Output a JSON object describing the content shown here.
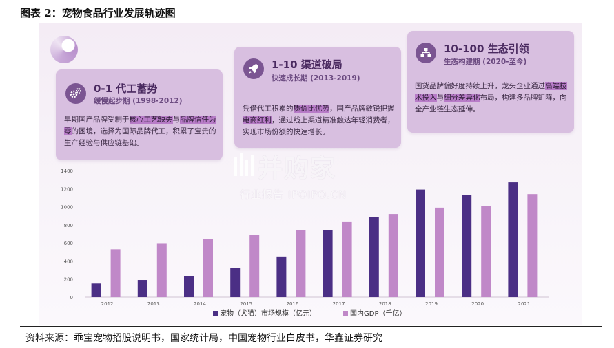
{
  "figure": {
    "title": "图表 2：宠物食品行业发展轨迹图",
    "source": "资料来源：乖宝宠物招股说明书，国家统计局，中国宠物行业白皮书，华鑫证券研究"
  },
  "cards": [
    {
      "heading": "0-1 代工蓄势",
      "sub": "缓慢起步期 (1998-2012)",
      "icon": "gears-icon",
      "body_parts": [
        "早期国产品牌受制于",
        "核心工艺缺失",
        "与",
        "品牌信任为零",
        "的困境，选择为国际品牌代工，积累了宝贵的生产经验与供应链基础。"
      ]
    },
    {
      "heading": "1-10 渠道破局",
      "sub": "快速成长期 (2013-2019)",
      "icon": "rocket-icon",
      "body_parts": [
        "凭借代工积累的",
        "质价比优势",
        "，国产品牌敏锐把握",
        "电商红利",
        "，通过线上渠道精准触达年轻消费者，实现市场份额的快速增长。"
      ]
    },
    {
      "heading": "10-100 生态引领",
      "sub": "生态构建期 (2020-至今)",
      "icon": "network-icon",
      "body_parts": [
        "国货品牌偏好度持续上升，龙头企业通过",
        "高端技术投入",
        "与",
        "细分差异化",
        "布局，构建多品牌矩阵，向全产业链生态延伸。"
      ]
    }
  ],
  "watermark": {
    "main": "并购家",
    "sub": "行业报告 IPOIPO.CN"
  },
  "colors": {
    "series1": "#4b2f85",
    "series2": "#c088c8",
    "card": "#d8bfe0",
    "icon": "#7b5592"
  },
  "chart_data": {
    "type": "bar",
    "categories": [
      "2012",
      "2013",
      "2014",
      "2015",
      "2016",
      "2017",
      "2018",
      "2019",
      "2020",
      "2021"
    ],
    "series": [
      {
        "name": "宠物（犬猫）市场规模（亿元）",
        "values": [
          150,
          190,
          230,
          320,
          450,
          740,
          890,
          1190,
          1130,
          1270
        ]
      },
      {
        "name": "国内GDP（千亿）",
        "values": [
          530,
          590,
          640,
          685,
          745,
          830,
          920,
          990,
          1010,
          1140
        ]
      }
    ],
    "yticks": [
      "0",
      "200",
      "400",
      "600",
      "800",
      "1000",
      "1200",
      "1400"
    ],
    "ylim": [
      0,
      1400
    ],
    "grid": false,
    "legend": "bottom-center"
  }
}
